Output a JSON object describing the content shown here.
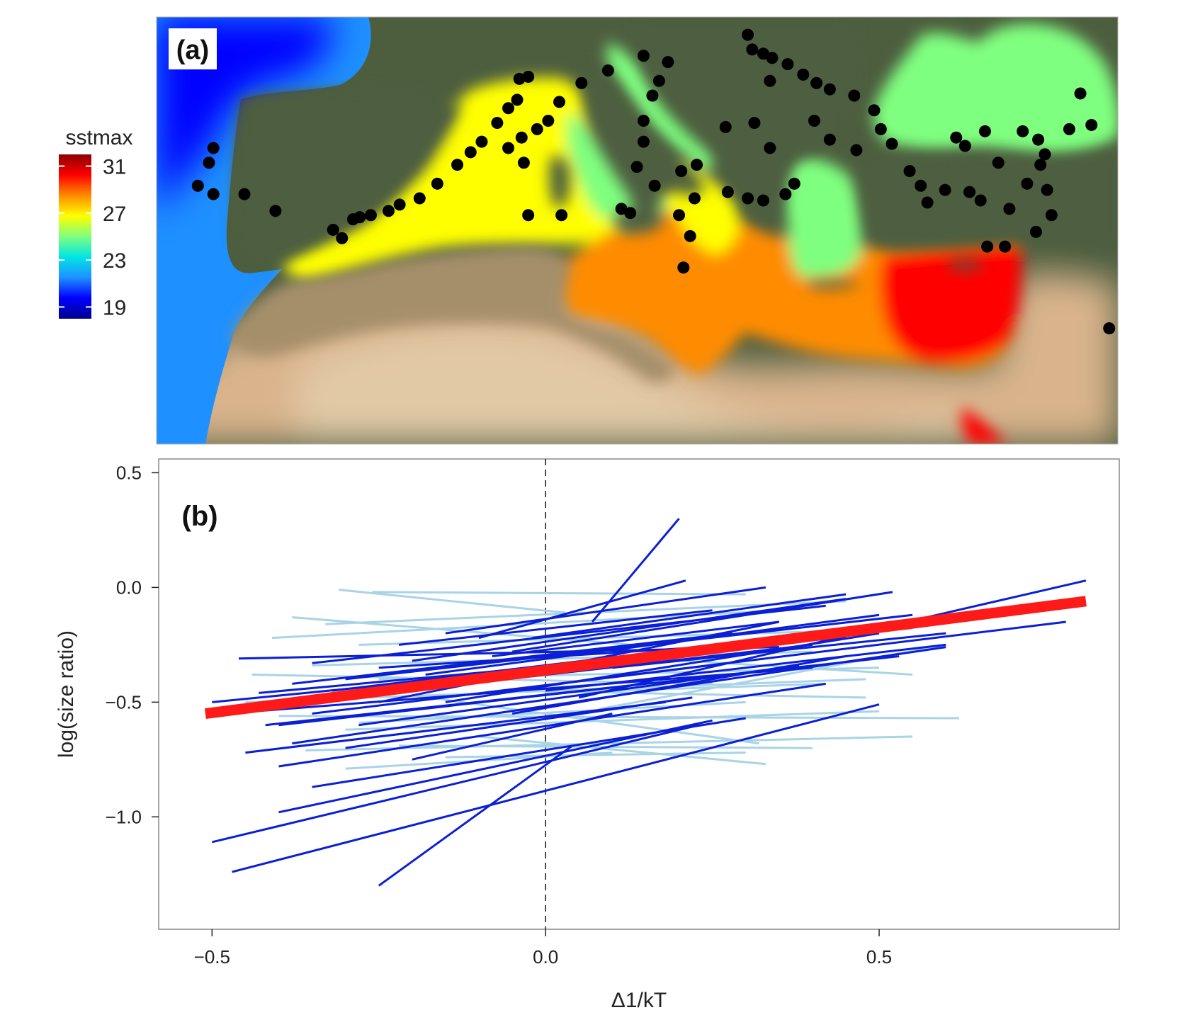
{
  "chart_data": [
    {
      "type": "map",
      "panel_label": "(a)",
      "colorbar": {
        "title": "sstmax",
        "ticks": [
          31,
          27,
          23,
          19
        ],
        "range": [
          18,
          32
        ],
        "colors": [
          "#00008b",
          "#0000ff",
          "#1e90ff",
          "#00e5e5",
          "#7fff7f",
          "#ffff00",
          "#ff8c00",
          "#ff0000",
          "#8b0000"
        ]
      },
      "land_colors": {
        "vegetation": "#4d5e3f",
        "desert": "#d9b38c",
        "sand_light": "#e2c9a6"
      },
      "sites_marker_color": "#000000",
      "sites": [
        [
          -14.0,
          45.7
        ],
        [
          -10.6,
          40.0
        ],
        [
          -10.8,
          39.3
        ],
        [
          -11.3,
          38.2
        ],
        [
          -10.6,
          37.8
        ],
        [
          -9.2,
          37.8
        ],
        [
          -7.8,
          37.0
        ],
        [
          -5.2,
          36.1
        ],
        [
          -4.3,
          36.6
        ],
        [
          -4.8,
          35.7
        ],
        [
          -4.0,
          36.7
        ],
        [
          -3.5,
          36.8
        ],
        [
          -2.7,
          37.0
        ],
        [
          -2.2,
          37.3
        ],
        [
          -1.3,
          37.6
        ],
        [
          -0.5,
          38.3
        ],
        [
          0.4,
          39.2
        ],
        [
          1.0,
          39.8
        ],
        [
          1.5,
          40.3
        ],
        [
          2.2,
          41.2
        ],
        [
          2.7,
          41.9
        ],
        [
          3.1,
          42.3
        ],
        [
          3.2,
          43.3
        ],
        [
          3.6,
          43.4
        ],
        [
          2.7,
          40.0
        ],
        [
          3.3,
          40.5
        ],
        [
          4.0,
          40.9
        ],
        [
          3.4,
          39.3
        ],
        [
          4.5,
          41.3
        ],
        [
          5.0,
          42.2
        ],
        [
          6.0,
          43.1
        ],
        [
          7.2,
          43.7
        ],
        [
          8.8,
          44.4
        ],
        [
          9.9,
          44.1
        ],
        [
          9.5,
          43.2
        ],
        [
          9.2,
          42.5
        ],
        [
          8.8,
          41.3
        ],
        [
          8.8,
          40.3
        ],
        [
          8.5,
          39.1
        ],
        [
          9.3,
          38.2
        ],
        [
          10.5,
          38.9
        ],
        [
          11.2,
          39.2
        ],
        [
          12.5,
          41.0
        ],
        [
          13.8,
          41.2
        ],
        [
          14.5,
          40.0
        ],
        [
          15.6,
          38.3
        ],
        [
          15.2,
          37.8
        ],
        [
          14.2,
          37.5
        ],
        [
          13.5,
          37.6
        ],
        [
          12.6,
          37.9
        ],
        [
          11.1,
          37.6
        ],
        [
          10.4,
          36.8
        ],
        [
          10.9,
          35.8
        ],
        [
          10.6,
          34.3
        ],
        [
          7.8,
          37.1
        ],
        [
          8.2,
          36.9
        ],
        [
          5.1,
          36.8
        ],
        [
          3.6,
          36.8
        ],
        [
          13.5,
          45.4
        ],
        [
          13.7,
          44.7
        ],
        [
          14.2,
          44.5
        ],
        [
          14.6,
          44.3
        ],
        [
          15.3,
          44.0
        ],
        [
          16.0,
          43.5
        ],
        [
          16.6,
          43.1
        ],
        [
          17.2,
          42.8
        ],
        [
          18.3,
          42.5
        ],
        [
          19.2,
          41.8
        ],
        [
          19.5,
          40.9
        ],
        [
          20.0,
          40.2
        ],
        [
          17.2,
          40.4
        ],
        [
          18.4,
          39.9
        ],
        [
          16.5,
          41.3
        ],
        [
          14.5,
          43.2
        ],
        [
          20.8,
          38.9
        ],
        [
          21.3,
          38.2
        ],
        [
          21.6,
          37.4
        ],
        [
          22.4,
          38.0
        ],
        [
          23.5,
          37.9
        ],
        [
          24.0,
          37.5
        ],
        [
          25.3,
          37.1
        ],
        [
          26.1,
          38.3
        ],
        [
          26.7,
          39.2
        ],
        [
          24.8,
          39.3
        ],
        [
          23.3,
          40.1
        ],
        [
          22.9,
          40.5
        ],
        [
          24.2,
          40.8
        ],
        [
          25.9,
          40.8
        ],
        [
          26.6,
          40.4
        ],
        [
          26.9,
          39.7
        ],
        [
          28.0,
          40.9
        ],
        [
          29.0,
          41.1
        ],
        [
          27.0,
          38.0
        ],
        [
          27.2,
          36.8
        ],
        [
          26.5,
          36.0
        ],
        [
          25.1,
          35.3
        ],
        [
          24.3,
          35.3
        ],
        [
          30.5,
          36.6
        ],
        [
          32.3,
          36.4
        ],
        [
          34.0,
          36.2
        ],
        [
          35.9,
          36.6
        ],
        [
          34.9,
          32.9
        ],
        [
          33.0,
          31.2
        ],
        [
          31.0,
          31.4
        ],
        [
          29.8,
          31.4
        ],
        [
          32.3,
          31.3
        ],
        [
          33.9,
          31.1
        ],
        [
          34.7,
          31.8
        ],
        [
          33.1,
          30.0
        ],
        [
          35.7,
          35.4
        ],
        [
          33.8,
          43.4
        ],
        [
          33.9,
          44.6
        ],
        [
          35.0,
          42.1
        ],
        [
          36.6,
          42.0
        ],
        [
          38.2,
          41.6
        ],
        [
          39.4,
          41.0
        ],
        [
          40.8,
          41.6
        ],
        [
          41.5,
          41.9
        ],
        [
          28.5,
          42.6
        ]
      ]
    },
    {
      "type": "line",
      "panel_label": "(b)",
      "xlabel": "Δ1/kT",
      "ylabel": "log(size ratio)",
      "xlim": [
        -0.58,
        0.86
      ],
      "ylim": [
        -1.49,
        0.56
      ],
      "xticks": [
        -0.5,
        0.0,
        0.5
      ],
      "xtick_labels": [
        "−0.5",
        "0.0",
        "0.5"
      ],
      "yticks": [
        0.5,
        0.0,
        -0.5,
        -1.0
      ],
      "ytick_labels": [
        "0.5",
        "0.0",
        "−0.5",
        "−1.0"
      ],
      "vline_x": 0.0,
      "grid": false,
      "colors": {
        "dark": "#0a1fd6",
        "light": "#a8d4e6",
        "mean": "#ff1a1a"
      },
      "light_series": [
        [
          [
            -0.31,
            -0.01
          ],
          [
            0.03,
            -0.11
          ]
        ],
        [
          [
            -0.26,
            -0.02
          ],
          [
            0.3,
            -0.03
          ]
        ],
        [
          [
            -0.41,
            -0.22
          ],
          [
            0.35,
            -0.1
          ]
        ],
        [
          [
            -0.38,
            -0.13
          ],
          [
            0.13,
            -0.25
          ]
        ],
        [
          [
            -0.33,
            -0.16
          ],
          [
            0.45,
            -0.06
          ]
        ],
        [
          [
            -0.28,
            -0.25
          ],
          [
            0.55,
            -0.18
          ]
        ],
        [
          [
            -0.35,
            -0.34
          ],
          [
            0.4,
            -0.28
          ]
        ],
        [
          [
            -0.25,
            -0.4
          ],
          [
            0.5,
            -0.35
          ]
        ],
        [
          [
            -0.4,
            -0.56
          ],
          [
            0.62,
            -0.57
          ]
        ],
        [
          [
            -0.45,
            -0.5
          ],
          [
            0.48,
            -0.4
          ]
        ],
        [
          [
            -0.3,
            -0.62
          ],
          [
            0.5,
            -0.54
          ]
        ],
        [
          [
            -0.22,
            -0.69
          ],
          [
            0.4,
            -0.7
          ]
        ],
        [
          [
            -0.36,
            -0.71
          ],
          [
            0.55,
            -0.65
          ]
        ],
        [
          [
            -0.1,
            -0.65
          ],
          [
            0.33,
            -0.77
          ]
        ],
        [
          [
            -0.15,
            -0.74
          ],
          [
            0.3,
            -0.72
          ]
        ],
        [
          [
            -0.3,
            -0.79
          ],
          [
            0.1,
            -0.72
          ]
        ],
        [
          [
            -0.28,
            -0.59
          ],
          [
            0.3,
            -0.5
          ]
        ],
        [
          [
            0.08,
            -0.53
          ],
          [
            0.6,
            -0.25
          ]
        ],
        [
          [
            -0.05,
            -0.45
          ],
          [
            0.48,
            -0.48
          ]
        ],
        [
          [
            0.1,
            -0.3
          ],
          [
            0.55,
            -0.38
          ]
        ],
        [
          [
            -0.2,
            -0.47
          ],
          [
            0.32,
            -0.68
          ]
        ],
        [
          [
            -0.44,
            -0.38
          ],
          [
            0.25,
            -0.42
          ]
        ],
        [
          [
            0.0,
            -0.46
          ],
          [
            0.42,
            -0.42
          ]
        ]
      ],
      "dark_series": [
        [
          [
            -0.5,
            -0.5
          ],
          [
            0.2,
            -0.3
          ]
        ],
        [
          [
            -0.5,
            -1.11
          ],
          [
            0.23,
            -0.6
          ]
        ],
        [
          [
            -0.47,
            -1.24
          ],
          [
            0.5,
            -0.51
          ]
        ],
        [
          [
            -0.25,
            -1.3
          ],
          [
            0.04,
            -0.69
          ]
        ],
        [
          [
            -0.46,
            -0.31
          ],
          [
            0.35,
            -0.26
          ]
        ],
        [
          [
            -0.45,
            -0.72
          ],
          [
            0.18,
            -0.5
          ]
        ],
        [
          [
            -0.4,
            -0.98
          ],
          [
            0.25,
            -0.58
          ]
        ],
        [
          [
            -0.35,
            -0.87
          ],
          [
            0.3,
            -0.57
          ]
        ],
        [
          [
            -0.48,
            -0.55
          ],
          [
            0.4,
            -0.35
          ]
        ],
        [
          [
            -0.42,
            -0.6
          ],
          [
            0.53,
            -0.3
          ]
        ],
        [
          [
            -0.38,
            -0.68
          ],
          [
            0.6,
            -0.26
          ]
        ],
        [
          [
            -0.4,
            -0.78
          ],
          [
            0.42,
            -0.42
          ]
        ],
        [
          [
            -0.35,
            -0.33
          ],
          [
            0.42,
            -0.08
          ]
        ],
        [
          [
            -0.3,
            -0.4
          ],
          [
            0.55,
            -0.12
          ]
        ],
        [
          [
            -0.2,
            -0.32
          ],
          [
            0.45,
            -0.05
          ]
        ],
        [
          [
            -0.15,
            -0.2
          ],
          [
            0.33,
            0.0
          ]
        ],
        [
          [
            -0.1,
            -0.22
          ],
          [
            0.21,
            0.03
          ]
        ],
        [
          [
            -0.05,
            -0.28
          ],
          [
            0.52,
            -0.02
          ]
        ],
        [
          [
            -0.02,
            -0.22
          ],
          [
            0.45,
            -0.03
          ]
        ],
        [
          [
            0.0,
            -0.45
          ],
          [
            0.6,
            -0.25
          ]
        ],
        [
          [
            0.02,
            -0.42
          ],
          [
            0.78,
            -0.15
          ]
        ],
        [
          [
            0.05,
            -0.48
          ],
          [
            0.81,
            0.03
          ]
        ],
        [
          [
            0.07,
            -0.15
          ],
          [
            0.2,
            0.3
          ]
        ],
        [
          [
            -0.25,
            -0.5
          ],
          [
            0.35,
            -0.15
          ]
        ],
        [
          [
            -0.28,
            -0.6
          ],
          [
            0.38,
            -0.34
          ]
        ],
        [
          [
            -0.2,
            -0.75
          ],
          [
            0.1,
            -0.55
          ]
        ],
        [
          [
            -0.32,
            -0.45
          ],
          [
            0.46,
            -0.18
          ]
        ],
        [
          [
            -0.15,
            -0.5
          ],
          [
            0.5,
            -0.2
          ]
        ],
        [
          [
            -0.35,
            -0.55
          ],
          [
            0.3,
            -0.32
          ]
        ],
        [
          [
            -0.38,
            -0.42
          ],
          [
            0.28,
            -0.2
          ]
        ],
        [
          [
            -0.18,
            -0.38
          ],
          [
            0.5,
            -0.12
          ]
        ],
        [
          [
            -0.12,
            -0.42
          ],
          [
            0.4,
            -0.25
          ]
        ],
        [
          [
            -0.08,
            -0.3
          ],
          [
            0.35,
            -0.15
          ]
        ],
        [
          [
            -0.22,
            -0.25
          ],
          [
            0.25,
            -0.1
          ]
        ],
        [
          [
            -0.4,
            -0.6
          ],
          [
            0.15,
            -0.42
          ]
        ],
        [
          [
            -0.3,
            -0.7
          ],
          [
            0.22,
            -0.48
          ]
        ],
        [
          [
            -0.05,
            -0.55
          ],
          [
            0.45,
            -0.3
          ]
        ],
        [
          [
            0.1,
            -0.35
          ],
          [
            0.6,
            -0.2
          ]
        ],
        [
          [
            -0.25,
            -0.35
          ],
          [
            0.45,
            -0.22
          ]
        ],
        [
          [
            -0.43,
            -0.46
          ],
          [
            0.32,
            -0.26
          ]
        ]
      ],
      "mean_series": [
        [
          -0.51,
          -0.55
        ],
        [
          0.81,
          -0.06
        ]
      ]
    }
  ]
}
